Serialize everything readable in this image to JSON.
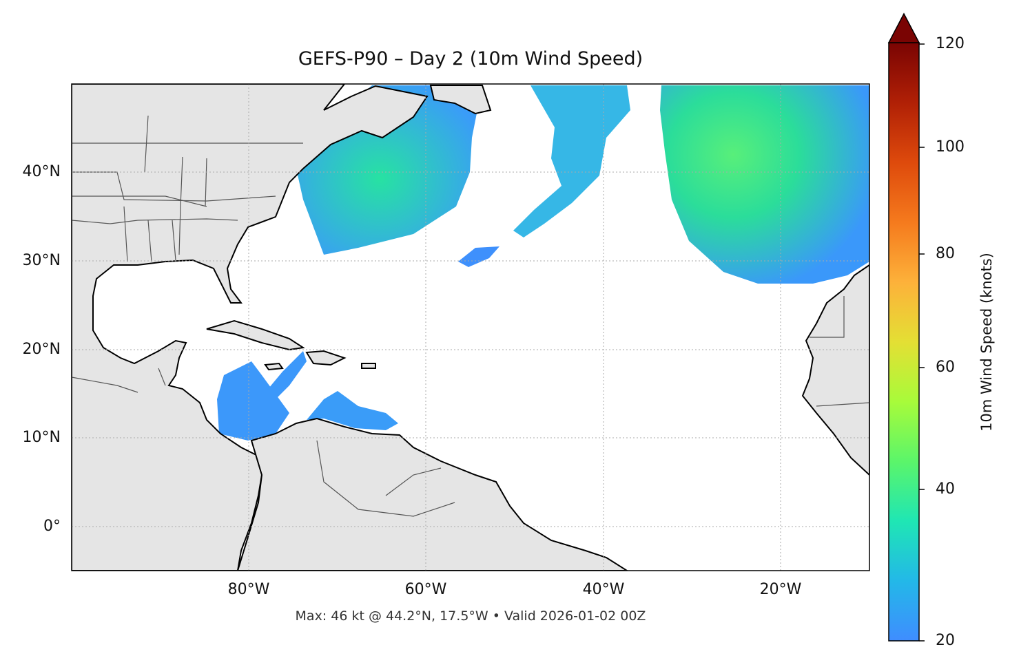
{
  "title": "GEFS-P90 – Day 2 (10m Wind Speed)",
  "footer": "Max: 46 kt @ 44.2°N, 17.5°W • Valid 2026-01-02 00Z",
  "map": {
    "lon_range": [
      -100,
      -10
    ],
    "lat_range": [
      -5,
      50
    ],
    "lat_ticks": [
      "40°N",
      "30°N",
      "20°N",
      "10°N",
      "0°"
    ],
    "lon_ticks": [
      "80°W",
      "60°W",
      "40°W",
      "20°W"
    ],
    "land_color": "#e5e5e5",
    "coast_color": "#000000",
    "border_color": "#555555",
    "grid": "dotted"
  },
  "colorbar": {
    "label": "10m Wind Speed (knots)",
    "ticks": [
      "120",
      "100",
      "80",
      "60",
      "40",
      "20"
    ],
    "range": [
      20,
      120
    ],
    "extend": "max",
    "colormap": "turbo"
  },
  "wind_areas": [
    {
      "name": "nw-atlantic",
      "speed_kt": 34
    },
    {
      "name": "mid-atlantic-band",
      "speed_kt": 30
    },
    {
      "name": "ne-atlantic-storm",
      "speed_kt": 46
    },
    {
      "name": "caribbean-west",
      "speed_kt": 25
    },
    {
      "name": "caribbean-east",
      "speed_kt": 25
    }
  ]
}
